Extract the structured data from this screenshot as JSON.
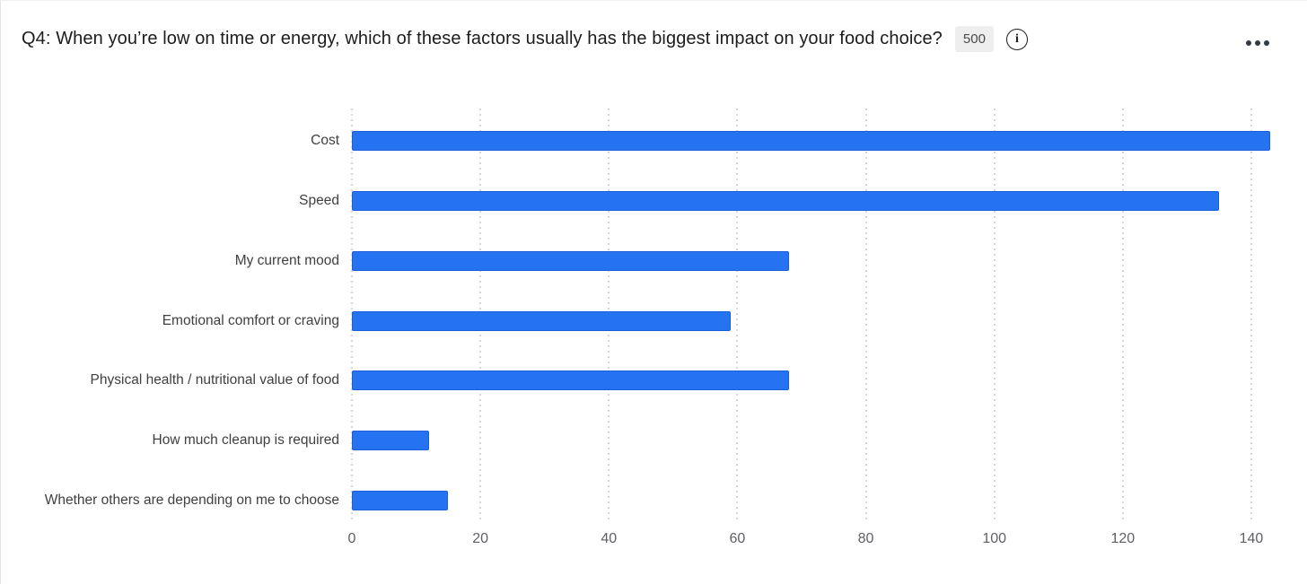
{
  "header": {
    "title": "Q4: When you’re low on time or energy, which of these factors usually has the biggest impact on your food choice?",
    "response_count": "500",
    "icons": {
      "info": "info-circle-icon",
      "more": "ellipsis-menu-icon"
    }
  },
  "colors": {
    "bar_fill": "#2673f2",
    "bar_border": "#1c5dd9",
    "gridline": "#d7d7d7",
    "tick_text": "#5d5f63",
    "category_text": "#3f3f3f",
    "badge_bg": "#eeeeee"
  },
  "chart_data": {
    "type": "bar",
    "orientation": "horizontal",
    "title": "",
    "xlabel": "",
    "ylabel": "",
    "grid": "vertical-dotted",
    "legend": "none",
    "categories": [
      "Cost",
      "Speed",
      "My current mood",
      "Emotional comfort or craving",
      "Physical health / nutritional value of food",
      "How much cleanup is required",
      "Whether others are depending on me to choose"
    ],
    "values": [
      143,
      135,
      68,
      59,
      68,
      12,
      15
    ],
    "x_ticks": [
      0,
      20,
      40,
      60,
      80,
      100,
      120,
      140
    ],
    "xlim": [
      0,
      147
    ]
  }
}
